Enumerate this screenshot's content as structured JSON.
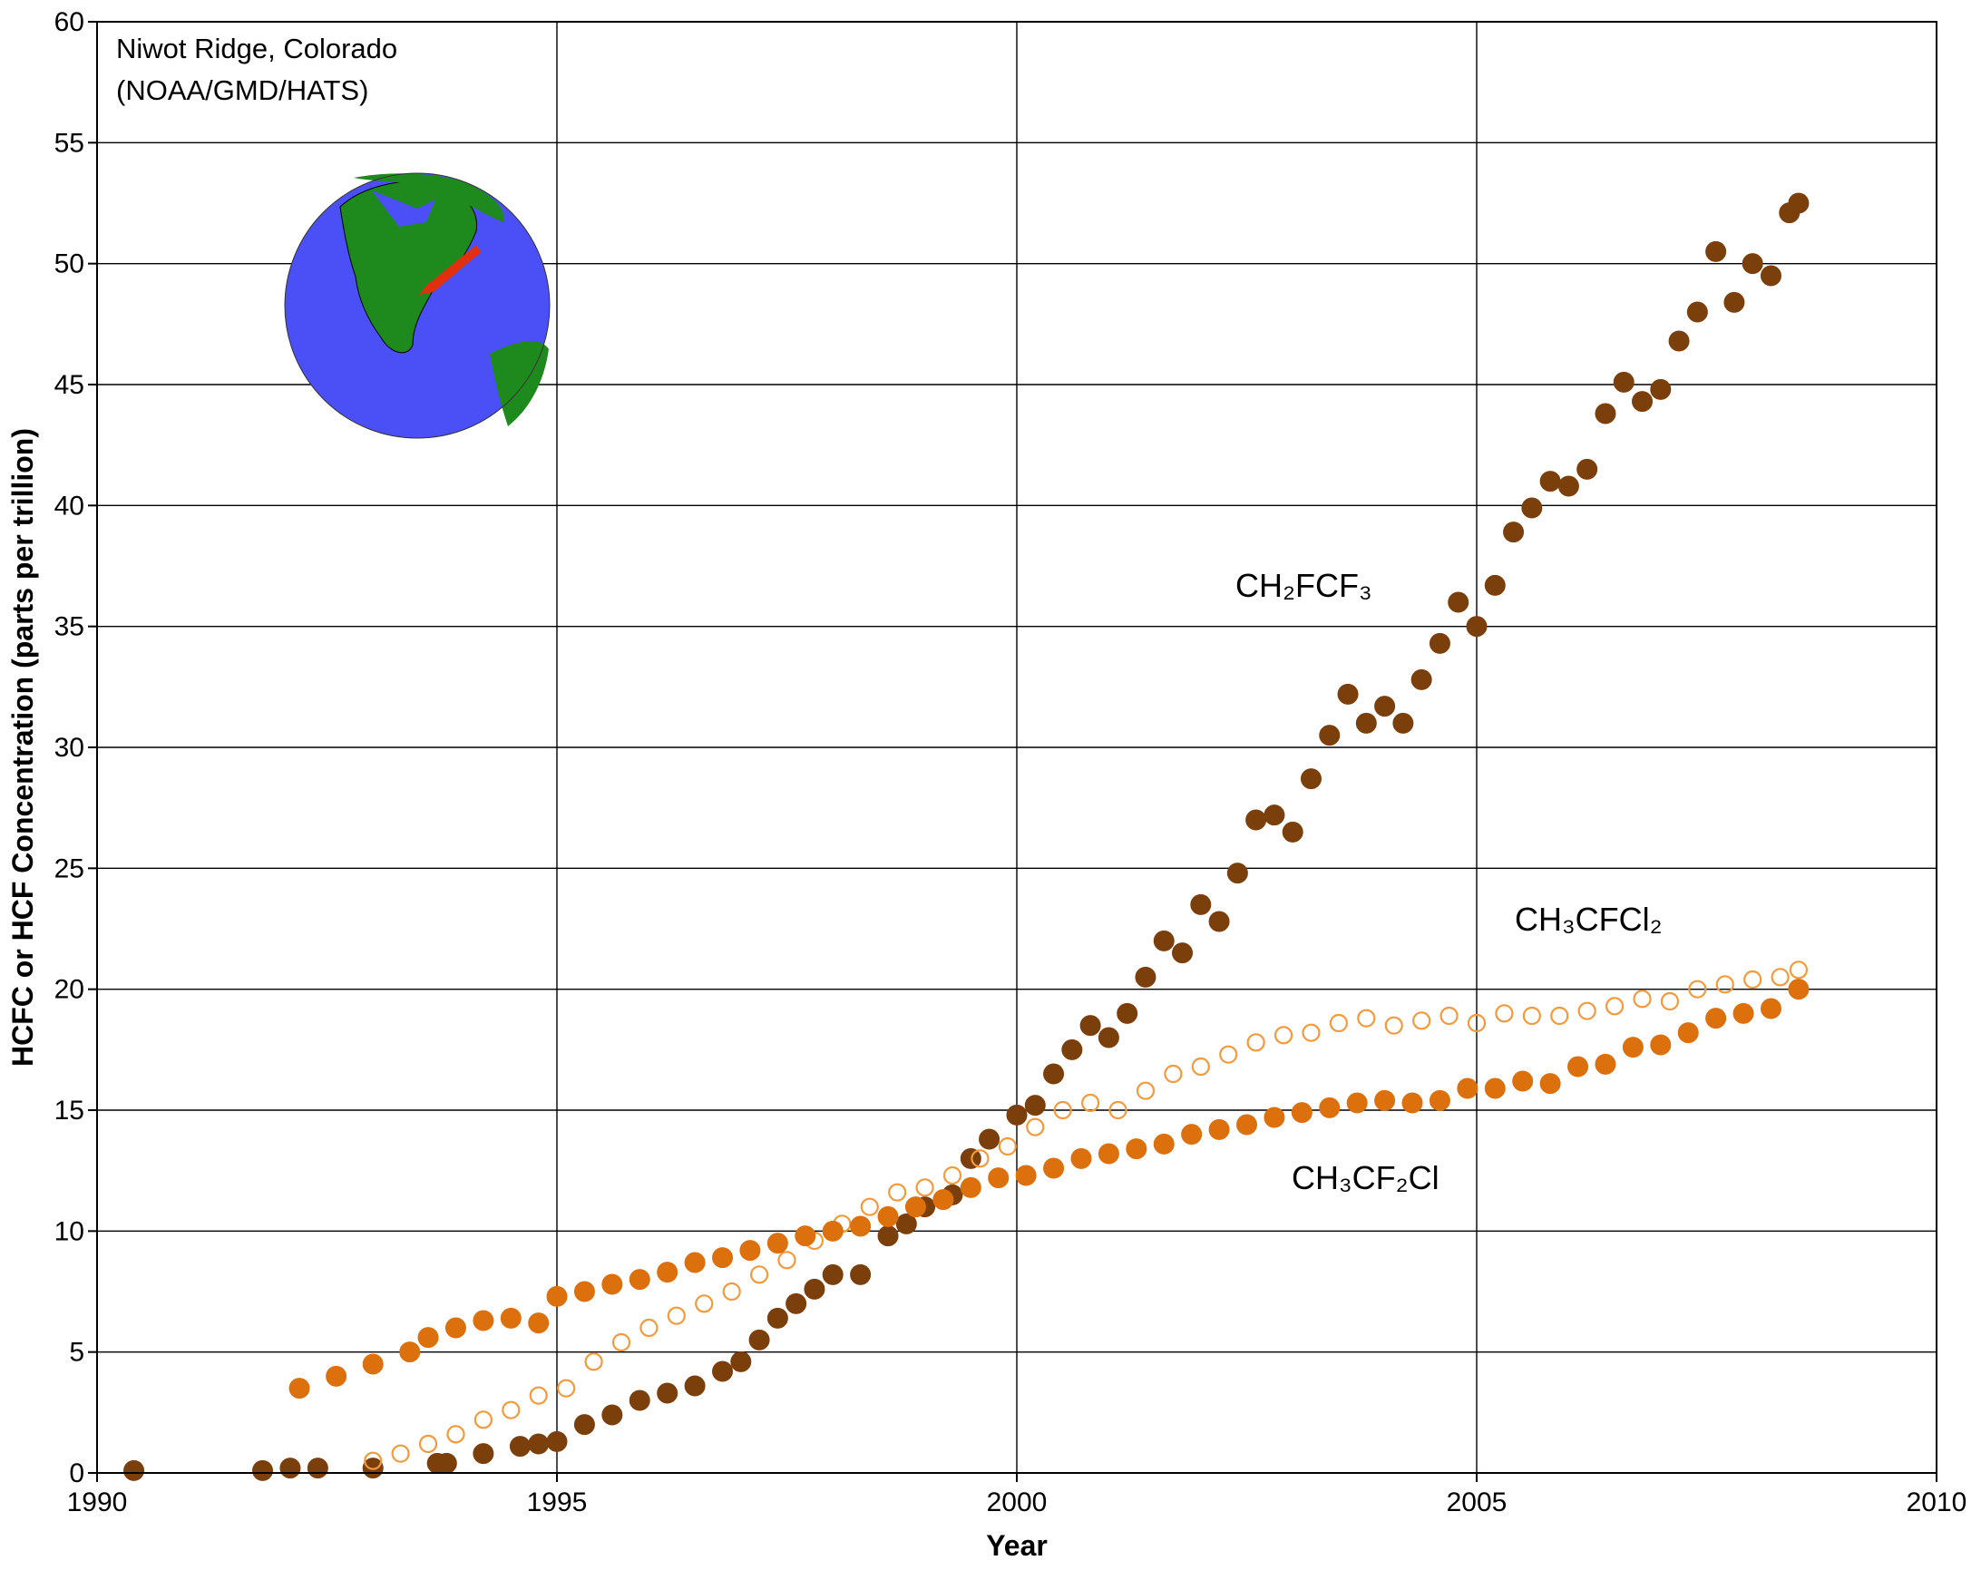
{
  "chart_data": {
    "type": "scatter",
    "xlabel": "Year",
    "ylabel": "HCFC or HCF Concentration (parts per trillion)",
    "annotations": [
      "Niwot Ridge, Colorado",
      "(NOAA/GMD/HATS)"
    ],
    "xlim": [
      1990,
      2010
    ],
    "ylim": [
      0,
      60
    ],
    "xticks": [
      1990,
      1995,
      2000,
      2005,
      2010
    ],
    "yticks": [
      0,
      5,
      10,
      15,
      20,
      25,
      30,
      35,
      40,
      45,
      50,
      55,
      60
    ],
    "grid": true,
    "series": [
      {
        "name": "CH₂FCF₃",
        "color": "#7b3f0c",
        "marker": "filled",
        "x": [
          1990.4,
          1991.8,
          1992.1,
          1992.4,
          1993.0,
          1993.7,
          1993.8,
          1994.2,
          1994.6,
          1994.8,
          1995.0,
          1995.3,
          1995.6,
          1995.9,
          1996.2,
          1996.5,
          1996.8,
          1997.0,
          1997.2,
          1997.4,
          1997.6,
          1997.8,
          1998.0,
          1998.3,
          1998.6,
          1998.8,
          1999.0,
          1999.3,
          1999.5,
          1999.7,
          2000.0,
          2000.2,
          2000.4,
          2000.6,
          2000.8,
          2001.0,
          2001.2,
          2001.4,
          2001.6,
          2001.8,
          2002.0,
          2002.2,
          2002.4,
          2002.6,
          2002.8,
          2003.0,
          2003.2,
          2003.4,
          2003.6,
          2003.8,
          2004.0,
          2004.2,
          2004.4,
          2004.6,
          2004.8,
          2005.0,
          2005.2,
          2005.4,
          2005.6,
          2005.8,
          2006.0,
          2006.2,
          2006.4,
          2006.6,
          2006.8,
          2007.0,
          2007.2,
          2007.4,
          2007.6,
          2007.8,
          2008.0,
          2008.2,
          2008.4,
          2008.5
        ],
        "values": [
          0.1,
          0.1,
          0.2,
          0.2,
          0.2,
          0.4,
          0.4,
          0.8,
          1.1,
          1.2,
          1.3,
          2.0,
          2.4,
          3.0,
          3.3,
          3.6,
          4.2,
          4.6,
          5.5,
          6.4,
          7.0,
          7.6,
          8.2,
          8.2,
          9.8,
          10.3,
          11.0,
          11.5,
          13.0,
          13.8,
          14.8,
          15.2,
          16.5,
          17.5,
          18.5,
          18.0,
          19.0,
          20.5,
          22.0,
          21.5,
          23.5,
          22.8,
          24.8,
          27.0,
          27.2,
          26.5,
          28.7,
          30.5,
          32.2,
          31.0,
          31.7,
          31.0,
          32.8,
          34.3,
          36.0,
          35.0,
          36.7,
          38.9,
          39.9,
          41.0,
          40.8,
          41.5,
          43.8,
          45.1,
          44.3,
          44.8,
          46.8,
          48.0,
          50.5,
          48.4,
          50.0,
          49.5,
          52.1,
          52.5
        ]
      },
      {
        "name": "CH₃CFCl₂",
        "color": "#f29a3c",
        "marker": "open",
        "x": [
          1993.0,
          1993.3,
          1993.6,
          1993.9,
          1994.2,
          1994.5,
          1994.8,
          1995.1,
          1995.4,
          1995.7,
          1996.0,
          1996.3,
          1996.6,
          1996.9,
          1997.2,
          1997.5,
          1997.8,
          1998.1,
          1998.4,
          1998.7,
          1999.0,
          1999.3,
          1999.6,
          1999.9,
          2000.2,
          2000.5,
          2000.8,
          2001.1,
          2001.4,
          2001.7,
          2002.0,
          2002.3,
          2002.6,
          2002.9,
          2003.2,
          2003.5,
          2003.8,
          2004.1,
          2004.4,
          2004.7,
          2005.0,
          2005.3,
          2005.6,
          2005.9,
          2006.2,
          2006.5,
          2006.8,
          2007.1,
          2007.4,
          2007.7,
          2008.0,
          2008.3,
          2008.5
        ],
        "values": [
          0.5,
          0.8,
          1.2,
          1.6,
          2.2,
          2.6,
          3.2,
          3.5,
          4.6,
          5.4,
          6.0,
          6.5,
          7.0,
          7.5,
          8.2,
          8.8,
          9.6,
          10.3,
          11.0,
          11.6,
          11.8,
          12.3,
          13.0,
          13.5,
          14.3,
          15.0,
          15.3,
          15.0,
          15.8,
          16.5,
          16.8,
          17.3,
          17.8,
          18.1,
          18.2,
          18.6,
          18.8,
          18.5,
          18.7,
          18.9,
          18.6,
          19.0,
          18.9,
          18.9,
          19.1,
          19.3,
          19.6,
          19.5,
          20.0,
          20.2,
          20.4,
          20.5,
          20.8
        ]
      },
      {
        "name": "CH₃CF₂Cl",
        "color": "#db700c",
        "marker": "filled",
        "x": [
          1992.2,
          1992.6,
          1993.0,
          1993.4,
          1993.6,
          1993.9,
          1994.2,
          1994.5,
          1994.8,
          1995.0,
          1995.3,
          1995.6,
          1995.9,
          1996.2,
          1996.5,
          1996.8,
          1997.1,
          1997.4,
          1997.7,
          1998.0,
          1998.3,
          1998.6,
          1998.9,
          1999.2,
          1999.5,
          1999.8,
          2000.1,
          2000.4,
          2000.7,
          2001.0,
          2001.3,
          2001.6,
          2001.9,
          2002.2,
          2002.5,
          2002.8,
          2003.1,
          2003.4,
          2003.7,
          2004.0,
          2004.3,
          2004.6,
          2004.9,
          2005.2,
          2005.5,
          2005.8,
          2006.1,
          2006.4,
          2006.7,
          2007.0,
          2007.3,
          2007.6,
          2007.9,
          2008.2,
          2008.5
        ],
        "values": [
          3.5,
          4.0,
          4.5,
          5.0,
          5.6,
          6.0,
          6.3,
          6.4,
          6.2,
          7.3,
          7.5,
          7.8,
          8.0,
          8.3,
          8.7,
          8.9,
          9.2,
          9.5,
          9.8,
          10.0,
          10.2,
          10.6,
          11.0,
          11.3,
          11.8,
          12.2,
          12.3,
          12.6,
          13.0,
          13.2,
          13.4,
          13.6,
          14.0,
          14.2,
          14.4,
          14.7,
          14.9,
          15.1,
          15.3,
          15.4,
          15.3,
          15.4,
          15.9,
          15.9,
          16.2,
          16.1,
          16.8,
          16.9,
          17.6,
          17.7,
          18.2,
          18.8,
          19.0,
          19.2,
          20.0
        ]
      }
    ]
  }
}
